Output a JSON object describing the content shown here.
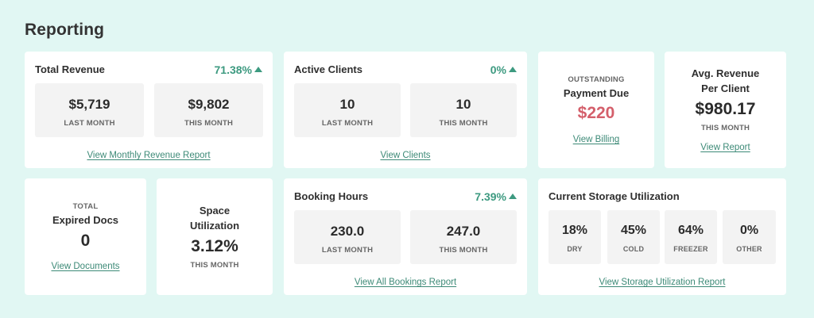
{
  "page": {
    "title": "Reporting"
  },
  "colors": {
    "background": "#e1f7f3",
    "accent": "#3d9a80",
    "danger": "#d45f6b"
  },
  "total_revenue": {
    "title": "Total Revenue",
    "change": "71.38%",
    "last_month_value": "$5,719",
    "last_month_label": "LAST MONTH",
    "this_month_value": "$9,802",
    "this_month_label": "THIS MONTH",
    "link": "View Monthly Revenue Report"
  },
  "active_clients": {
    "title": "Active Clients",
    "change": "0%",
    "last_month_value": "10",
    "last_month_label": "LAST MONTH",
    "this_month_value": "10",
    "this_month_label": "THIS MONTH",
    "link": "View Clients"
  },
  "payment_due": {
    "caption": "OUTSTANDING",
    "title": "Payment Due",
    "value": "$220",
    "link": "View Billing"
  },
  "avg_revenue": {
    "title_line1": "Avg. Revenue",
    "title_line2": "Per Client",
    "value": "$980.17",
    "caption": "THIS MONTH",
    "link": "View Report"
  },
  "expired_docs": {
    "caption": "TOTAL",
    "title": "Expired Docs",
    "value": "0",
    "link": "View Documents"
  },
  "space_utilization": {
    "title_line1": "Space",
    "title_line2": "Utilization",
    "value": "3.12%",
    "caption": "THIS MONTH"
  },
  "booking_hours": {
    "title": "Booking Hours",
    "change": "7.39%",
    "last_month_value": "230.0",
    "last_month_label": "LAST MONTH",
    "this_month_value": "247.0",
    "this_month_label": "THIS MONTH",
    "link": "View All Bookings Report"
  },
  "storage": {
    "title": "Current Storage Utilization",
    "items": [
      {
        "value": "18%",
        "label": "DRY"
      },
      {
        "value": "45%",
        "label": "COLD"
      },
      {
        "value": "64%",
        "label": "FREEZER"
      },
      {
        "value": "0%",
        "label": "OTHER"
      }
    ],
    "link": "View Storage Utilization Report"
  }
}
